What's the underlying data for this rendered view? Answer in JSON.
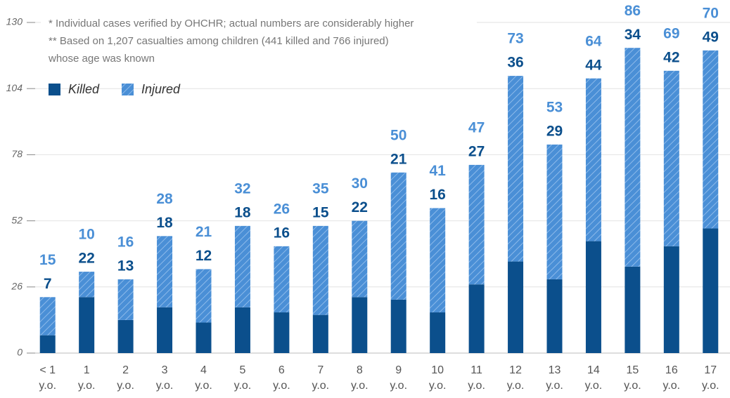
{
  "chart_data": {
    "type": "bar",
    "stacked": true,
    "notes": [
      "* Individual cases verified by OHCHR; actual numbers are considerably higher",
      "** Based on 1,207 casualties among children (441 killed and 766 injured)",
      "whose age was known"
    ],
    "categories": [
      [
        "< 1",
        "y.o."
      ],
      [
        "1",
        "y.o."
      ],
      [
        "2",
        "y.o."
      ],
      [
        "3",
        "y.o."
      ],
      [
        "4",
        "y.o."
      ],
      [
        "5",
        "y.o."
      ],
      [
        "6",
        "y.o."
      ],
      [
        "7",
        "y.o."
      ],
      [
        "8",
        "y.o."
      ],
      [
        "9",
        "y.o."
      ],
      [
        "10",
        "y.o."
      ],
      [
        "11",
        "y.o."
      ],
      [
        "12",
        "y.o."
      ],
      [
        "13",
        "y.o."
      ],
      [
        "14",
        "y.o."
      ],
      [
        "15",
        "y.o."
      ],
      [
        "16",
        "y.o."
      ],
      [
        "17",
        "y.o."
      ]
    ],
    "series": [
      {
        "name": "Killed",
        "color": "#0b4f8c",
        "values": [
          7,
          22,
          13,
          18,
          12,
          18,
          16,
          15,
          22,
          21,
          16,
          27,
          36,
          29,
          44,
          34,
          42,
          49
        ]
      },
      {
        "name": "Injured",
        "color": "#4a8fd6",
        "values": [
          15,
          10,
          16,
          28,
          21,
          32,
          26,
          35,
          30,
          50,
          41,
          47,
          73,
          53,
          64,
          86,
          69,
          70
        ]
      }
    ],
    "ylim": [
      0,
      130
    ],
    "yticks": [
      0,
      26,
      52,
      78,
      104,
      130
    ],
    "grid": true
  }
}
